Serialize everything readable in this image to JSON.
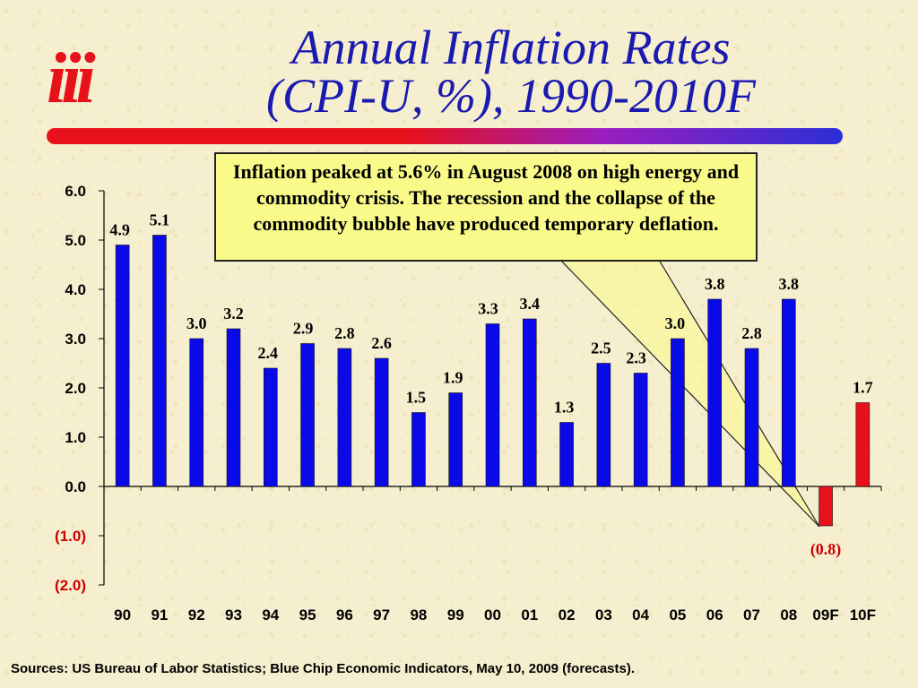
{
  "logo": {
    "text": "iii"
  },
  "title": {
    "line1": "Annual Inflation Rates",
    "line2": "(CPI-U, %), 1990-2010F"
  },
  "callout": {
    "text": "Inflation peaked at 5.6% in August 2008 on high energy and commodity crisis.  The recession and the collapse of the commodity bubble have produced temporary deflation."
  },
  "source": "Sources: US Bureau of Labor Statistics; Blue Chip Economic Indicators, May 10, 2009 (forecasts).",
  "colors": {
    "bar_actual": "#0a0ae8",
    "bar_forecast": "#e8101a",
    "negative_tick": "#cc0000",
    "callout_fill": "#fafa8a"
  },
  "chart_data": {
    "type": "bar",
    "categories": [
      "90",
      "91",
      "92",
      "93",
      "94",
      "95",
      "96",
      "97",
      "98",
      "99",
      "00",
      "01",
      "02",
      "03",
      "04",
      "05",
      "06",
      "07",
      "08",
      "09F",
      "10F"
    ],
    "values": [
      4.9,
      5.1,
      3.0,
      3.2,
      2.4,
      2.9,
      2.8,
      2.6,
      1.5,
      1.9,
      3.3,
      3.4,
      1.3,
      2.5,
      2.3,
      3.0,
      3.8,
      2.8,
      3.8,
      -0.8,
      1.7
    ],
    "data_labels": [
      "4.9",
      "5.1",
      "3.0",
      "3.2",
      "2.4",
      "2.9",
      "2.8",
      "2.6",
      "1.5",
      "1.9",
      "3.3",
      "3.4",
      "1.3",
      "2.5",
      "2.3",
      "3.0",
      "3.8",
      "2.8",
      "3.8",
      "(0.8)",
      "1.7"
    ],
    "forecast": [
      false,
      false,
      false,
      false,
      false,
      false,
      false,
      false,
      false,
      false,
      false,
      false,
      false,
      false,
      false,
      false,
      false,
      false,
      false,
      true,
      true
    ],
    "ylim": [
      -2.0,
      6.0
    ],
    "yticks": [
      6.0,
      5.0,
      4.0,
      3.0,
      2.0,
      1.0,
      0.0,
      -1.0,
      -2.0
    ],
    "ytick_labels": [
      "6.0",
      "5.0",
      "4.0",
      "3.0",
      "2.0",
      "1.0",
      "0.0",
      "(1.0)",
      "(2.0)"
    ],
    "grid": false
  }
}
